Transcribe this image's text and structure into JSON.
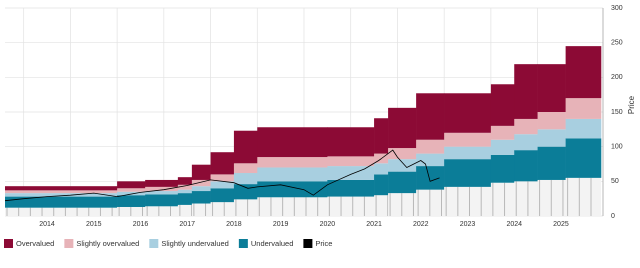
{
  "chart_data": {
    "type": "valuation-bands",
    "y_label": "Price",
    "xlim": [
      2013.6,
      2026.4
    ],
    "xticks": [
      2014,
      2015,
      2016,
      2017,
      2018,
      2019,
      2020,
      2021,
      2022,
      2023,
      2024,
      2025
    ],
    "ylim": [
      0,
      300
    ],
    "yticks": [
      0,
      50,
      100,
      150,
      200,
      250,
      300
    ],
    "grid": true,
    "x": [
      2013.6,
      2016.0,
      2016.6,
      2017.3,
      2017.6,
      2018.0,
      2018.5,
      2019.0,
      2020.5,
      2021.5,
      2021.8,
      2022.4,
      2023.0,
      2024.0,
      2024.5,
      2025.0,
      2025.6
    ],
    "floor_values": [
      12,
      13,
      14,
      16,
      18,
      20,
      24,
      27,
      28,
      30,
      33,
      38,
      42,
      48,
      50,
      52,
      55
    ],
    "floor_color": "#f3f3f3",
    "series": [
      {
        "name": "Undervalued",
        "color": "#0b7d98",
        "values": [
          16,
          17,
          17,
          17,
          18,
          20,
          22,
          23,
          24,
          30,
          31,
          34,
          40,
          40,
          45,
          48,
          57
        ]
      },
      {
        "name": "Slightly undervalued",
        "color": "#a8cfe0",
        "values": [
          5,
          5,
          5,
          5,
          7,
          10,
          16,
          20,
          20,
          16,
          18,
          18,
          18,
          22,
          23,
          25,
          28
        ]
      },
      {
        "name": "Slightly overvalued",
        "color": "#e7b3b8",
        "values": [
          4,
          5,
          6,
          7,
          9,
          10,
          14,
          15,
          14,
          14,
          16,
          20,
          20,
          20,
          22,
          25,
          30
        ]
      },
      {
        "name": "Overvalued",
        "color": "#8c0a35",
        "values": [
          6,
          10,
          10,
          11,
          22,
          32,
          47,
          43,
          42,
          51,
          58,
          67,
          57,
          60,
          79,
          69,
          75
        ]
      }
    ],
    "price": {
      "name": "Price",
      "color": "#000000",
      "x": [
        2013.6,
        2014.0,
        2014.5,
        2015.0,
        2015.5,
        2016.0,
        2016.5,
        2017.0,
        2017.5,
        2018.0,
        2018.5,
        2018.8,
        2019.0,
        2019.5,
        2020.0,
        2020.2,
        2020.5,
        2021.0,
        2021.3,
        2021.6,
        2021.8,
        2021.9,
        2022.0,
        2022.2,
        2022.5,
        2022.6,
        2022.7,
        2022.9
      ],
      "values": [
        22,
        25,
        28,
        30,
        33,
        28,
        34,
        38,
        44,
        52,
        48,
        40,
        42,
        45,
        38,
        30,
        45,
        60,
        68,
        80,
        90,
        95,
        85,
        70,
        80,
        75,
        50,
        55
      ]
    }
  }
}
